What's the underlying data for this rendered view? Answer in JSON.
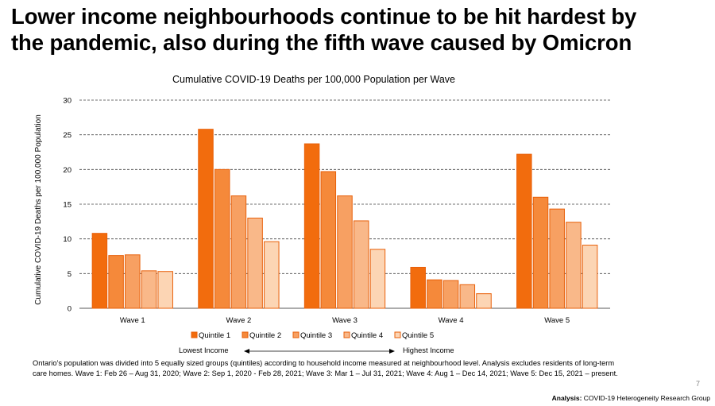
{
  "slide": {
    "title_line1": "Lower income neighbourhoods continue to be hit hardest by",
    "title_line2": "the pandemic, also during the fifth wave caused by Omicron",
    "page_number": "7",
    "analysis_label": "Analysis:",
    "analysis_source": "COVID-19 Heterogeneity Research Group",
    "footnote": "Ontario’s population was divided into 5 equally sized groups (quintiles) according to household income measured at neighbourhood level. Analysis excludes residents of long-term care homes. Wave 1: Feb 26 – Aug 31, 2020; Wave 2: Sep 1, 2020 - Feb 28, 2021; Wave 3: Mar 1 – Jul 31, 2021; Wave 4:  Aug 1 – Dec 14, 2021; Wave 5: Dec 15, 2021 – present."
  },
  "income_axis": {
    "low_label": "Lowest Income",
    "high_label": "Highest Income"
  },
  "chart_data": {
    "type": "bar",
    "title": "Cumulative COVID-19 Deaths per 100,000 Population per Wave",
    "xlabel": "",
    "ylabel": "Cumulative COVID-19 Deaths per 100,000 Population",
    "ylim": [
      0,
      30
    ],
    "yticks": [
      0,
      5,
      10,
      15,
      20,
      25,
      30
    ],
    "grid": "dashed horizontal",
    "legend_position": "bottom",
    "categories": [
      "Wave 1",
      "Wave 2",
      "Wave 3",
      "Wave 4",
      "Wave 5"
    ],
    "series": [
      {
        "name": "Quintile 1",
        "color": "#f26c0d",
        "values": [
          10.8,
          25.8,
          23.7,
          5.9,
          22.2
        ]
      },
      {
        "name": "Quintile 2",
        "color": "#f5893a",
        "values": [
          7.6,
          20.0,
          19.7,
          4.1,
          16.0
        ]
      },
      {
        "name": "Quintile 3",
        "color": "#f7a062",
        "values": [
          7.7,
          16.2,
          16.2,
          4.0,
          14.3
        ]
      },
      {
        "name": "Quintile 4",
        "color": "#f9b889",
        "values": [
          5.4,
          13.0,
          12.6,
          3.4,
          12.4
        ]
      },
      {
        "name": "Quintile 5",
        "color": "#fcd5b4",
        "values": [
          5.3,
          9.6,
          8.5,
          2.1,
          9.1
        ]
      }
    ],
    "edge_color": "#e8600a"
  }
}
